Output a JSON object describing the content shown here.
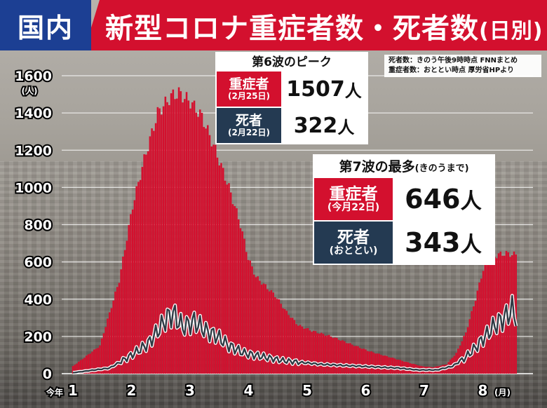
{
  "header": {
    "badge": "国内",
    "title": "新型コロナ重症者数・死者数",
    "title_paren": "(日別)"
  },
  "source": {
    "line1": "死者数：きのう午後9時時点 FNNまとめ",
    "line2": "重症者数：おととい時点 厚労省HPより"
  },
  "callout6": {
    "title": "第6波のピーク",
    "rows": [
      {
        "label": "重症者",
        "sub": "(2月25日)",
        "value": "1507",
        "unit": "人"
      },
      {
        "label": "死者",
        "sub": "(2月22日)",
        "value": "322",
        "unit": "人"
      }
    ]
  },
  "callout7": {
    "title": "第7波の最多",
    "title_sub": "(きのうまで)",
    "rows": [
      {
        "label": "重症者",
        "sub": "(今月22日)",
        "value": "646",
        "unit": "人"
      },
      {
        "label": "死者",
        "sub": "(おととい)",
        "value": "343",
        "unit": "人"
      }
    ]
  },
  "colors": {
    "bars": "#d3102e",
    "line": "#2f3a44",
    "line_outline": "#ffffff",
    "badge": "#1c3f93",
    "title_bar": "#d3102e"
  },
  "chart_data": {
    "type": "bar",
    "title": "新型コロナ重症者数・死者数",
    "ylim": [
      0,
      1600
    ],
    "yticks": [
      0,
      200,
      400,
      600,
      800,
      1000,
      1200,
      1400,
      1600
    ],
    "yunit": "(人)",
    "xticks": [
      "1",
      "2",
      "3",
      "4",
      "5",
      "6",
      "7",
      "8"
    ],
    "xprefix": "今年",
    "xunit": "(月)",
    "grid": true,
    "series": [
      {
        "kind": "bar",
        "values": [
          [
            1,
            40
          ],
          [
            15,
            150
          ],
          [
            25,
            500
          ],
          [
            32,
            900
          ],
          [
            38,
            1150
          ],
          [
            45,
            1400
          ],
          [
            52,
            1490
          ],
          [
            56,
            1507
          ],
          [
            62,
            1460
          ],
          [
            68,
            1380
          ],
          [
            75,
            1200
          ],
          [
            82,
            1000
          ],
          [
            88,
            800
          ],
          [
            92,
            620
          ],
          [
            96,
            520
          ],
          [
            100,
            480
          ],
          [
            106,
            420
          ],
          [
            112,
            330
          ],
          [
            118,
            260
          ],
          [
            125,
            230
          ],
          [
            135,
            200
          ],
          [
            145,
            160
          ],
          [
            155,
            120
          ],
          [
            165,
            90
          ],
          [
            175,
            60
          ],
          [
            182,
            40
          ],
          [
            188,
            35
          ],
          [
            195,
            50
          ],
          [
            200,
            110
          ],
          [
            205,
            220
          ],
          [
            210,
            400
          ],
          [
            214,
            560
          ],
          [
            218,
            620
          ],
          [
            222,
            640
          ],
          [
            226,
            646
          ],
          [
            229,
            640
          ]
        ]
      },
      {
        "kind": "line",
        "values": [
          [
            1,
            5
          ],
          [
            20,
            30
          ],
          [
            30,
            90
          ],
          [
            40,
            160
          ],
          [
            45,
            230
          ],
          [
            50,
            300
          ],
          [
            53,
            322
          ],
          [
            58,
            250
          ],
          [
            64,
            280
          ],
          [
            70,
            230
          ],
          [
            76,
            200
          ],
          [
            82,
            150
          ],
          [
            90,
            110
          ],
          [
            100,
            90
          ],
          [
            110,
            70
          ],
          [
            120,
            60
          ],
          [
            130,
            50
          ],
          [
            140,
            45
          ],
          [
            150,
            40
          ],
          [
            160,
            35
          ],
          [
            170,
            30
          ],
          [
            180,
            20
          ],
          [
            190,
            20
          ],
          [
            198,
            40
          ],
          [
            204,
            80
          ],
          [
            210,
            140
          ],
          [
            215,
            200
          ],
          [
            220,
            260
          ],
          [
            225,
            300
          ],
          [
            229,
            343
          ],
          [
            231,
            310
          ]
        ]
      }
    ]
  }
}
